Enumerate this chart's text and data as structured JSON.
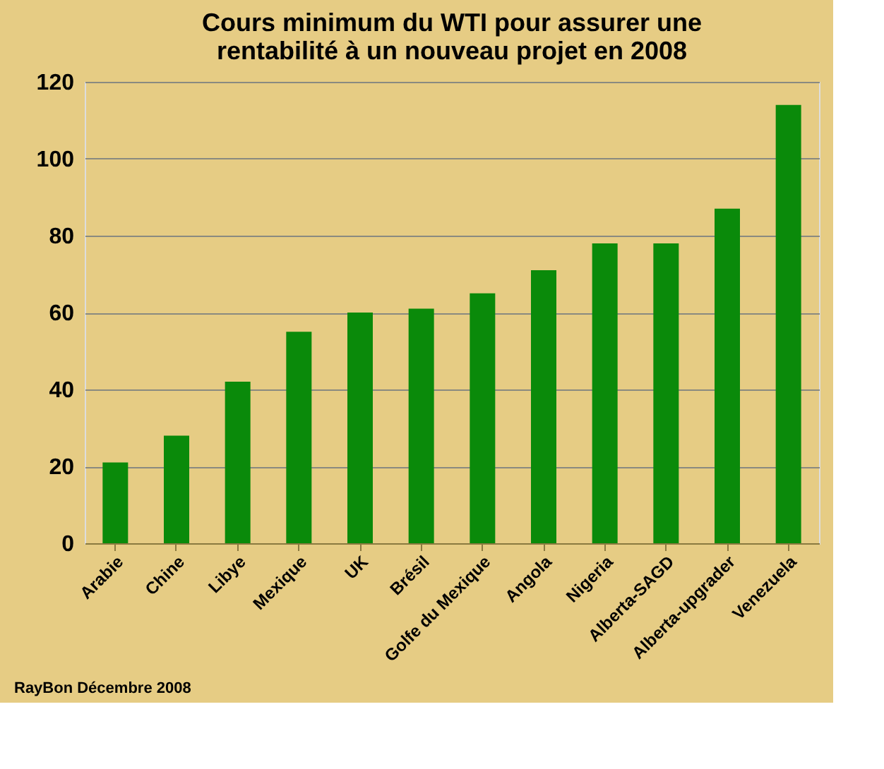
{
  "chart_data": {
    "type": "bar",
    "title": [
      "Cours minimum du WTI pour assurer une",
      "rentabilité à un nouveau projet en 2008"
    ],
    "categories": [
      "Arabie",
      "Chine",
      "Libye",
      "Mexique",
      "UK",
      "Brésil",
      "Golfe du Mexique",
      "Angola",
      "Nigeria",
      "Alberta-SAGD",
      "Alberta-upgrader",
      "Venezuela"
    ],
    "values": [
      21,
      28,
      42,
      55,
      60,
      61,
      65,
      71,
      78,
      78,
      87,
      114
    ],
    "color": "#0a8a0a",
    "ylim": [
      0,
      120
    ],
    "yticks": [
      0,
      20,
      40,
      60,
      80,
      100,
      120
    ],
    "grid": "y",
    "annotations": [
      "RayBon Décembre 2008"
    ]
  }
}
